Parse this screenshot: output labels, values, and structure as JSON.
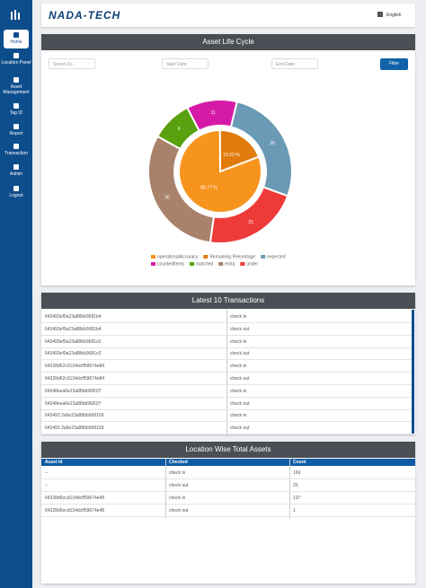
{
  "sidebar": {
    "items": [
      "Home",
      "Location Panel",
      "Asset Management",
      "Tag ID",
      "Report",
      "Transaction",
      "Admin",
      "Logout"
    ]
  },
  "header": {
    "logo": "NADA-TECH",
    "language": "English"
  },
  "asset_life_cycle": {
    "title": "Asset Life Cycle",
    "zone_select": "Select Zo...",
    "start_date": "Start Date",
    "end_date": "End Date",
    "filter_button": "Filter"
  },
  "chart_data": {
    "type": "donut",
    "inner": {
      "categories": [
        "operationalAccuracy",
        "Remaining Percentage"
      ],
      "values": [
        80.77,
        19.23
      ],
      "value_labels": [
        "80.77 %",
        "19.23 %"
      ],
      "colors": [
        "#f7941d",
        "#e07b0c"
      ]
    },
    "outer": {
      "categories": [
        "expected",
        "countedItems",
        "matched",
        "extra",
        "under"
      ],
      "values": [
        26,
        11,
        9,
        30,
        21
      ],
      "colors": [
        "#6a9ab5",
        "#d61aa8",
        "#5aa10f",
        "#a8826a",
        "#ef3a3a"
      ]
    }
  },
  "transactions": {
    "title": "Latest 10 Transactions",
    "rows": [
      [
        "643493ef9a23a88bb9681b4",
        "check in"
      ],
      [
        "643493ef9a23a88bb9681b4",
        "check out"
      ],
      [
        "643493ef9a23a88bb9681c0",
        "check in"
      ],
      [
        "643493ef9a23a88bb9681c0",
        "check out"
      ],
      [
        "64328d62c0134dcff59674e84",
        "check in"
      ],
      [
        "64328d62c0134dcff59674e84",
        "check out"
      ],
      [
        "64348eea6e23a88bb9681f7",
        "check in"
      ],
      [
        "64348eea6e23a88bb9681f7",
        "check out"
      ],
      [
        "643493 2a6e23a88bb968109",
        "check in"
      ],
      [
        "643493 2a6e23a88bb968109",
        "check out"
      ]
    ]
  },
  "location_assets": {
    "title": "Location Wise Total Assets",
    "columns": [
      "Asset Id",
      "Checked",
      "Count"
    ],
    "rows": [
      [
        "--",
        "check in",
        "169"
      ],
      [
        "--",
        "check out",
        "20"
      ],
      [
        "64328d5ecd134dcff59674e48",
        "check in",
        "137"
      ],
      [
        "64328d5ecd134dcff59674e48",
        "check out",
        "1"
      ]
    ]
  }
}
